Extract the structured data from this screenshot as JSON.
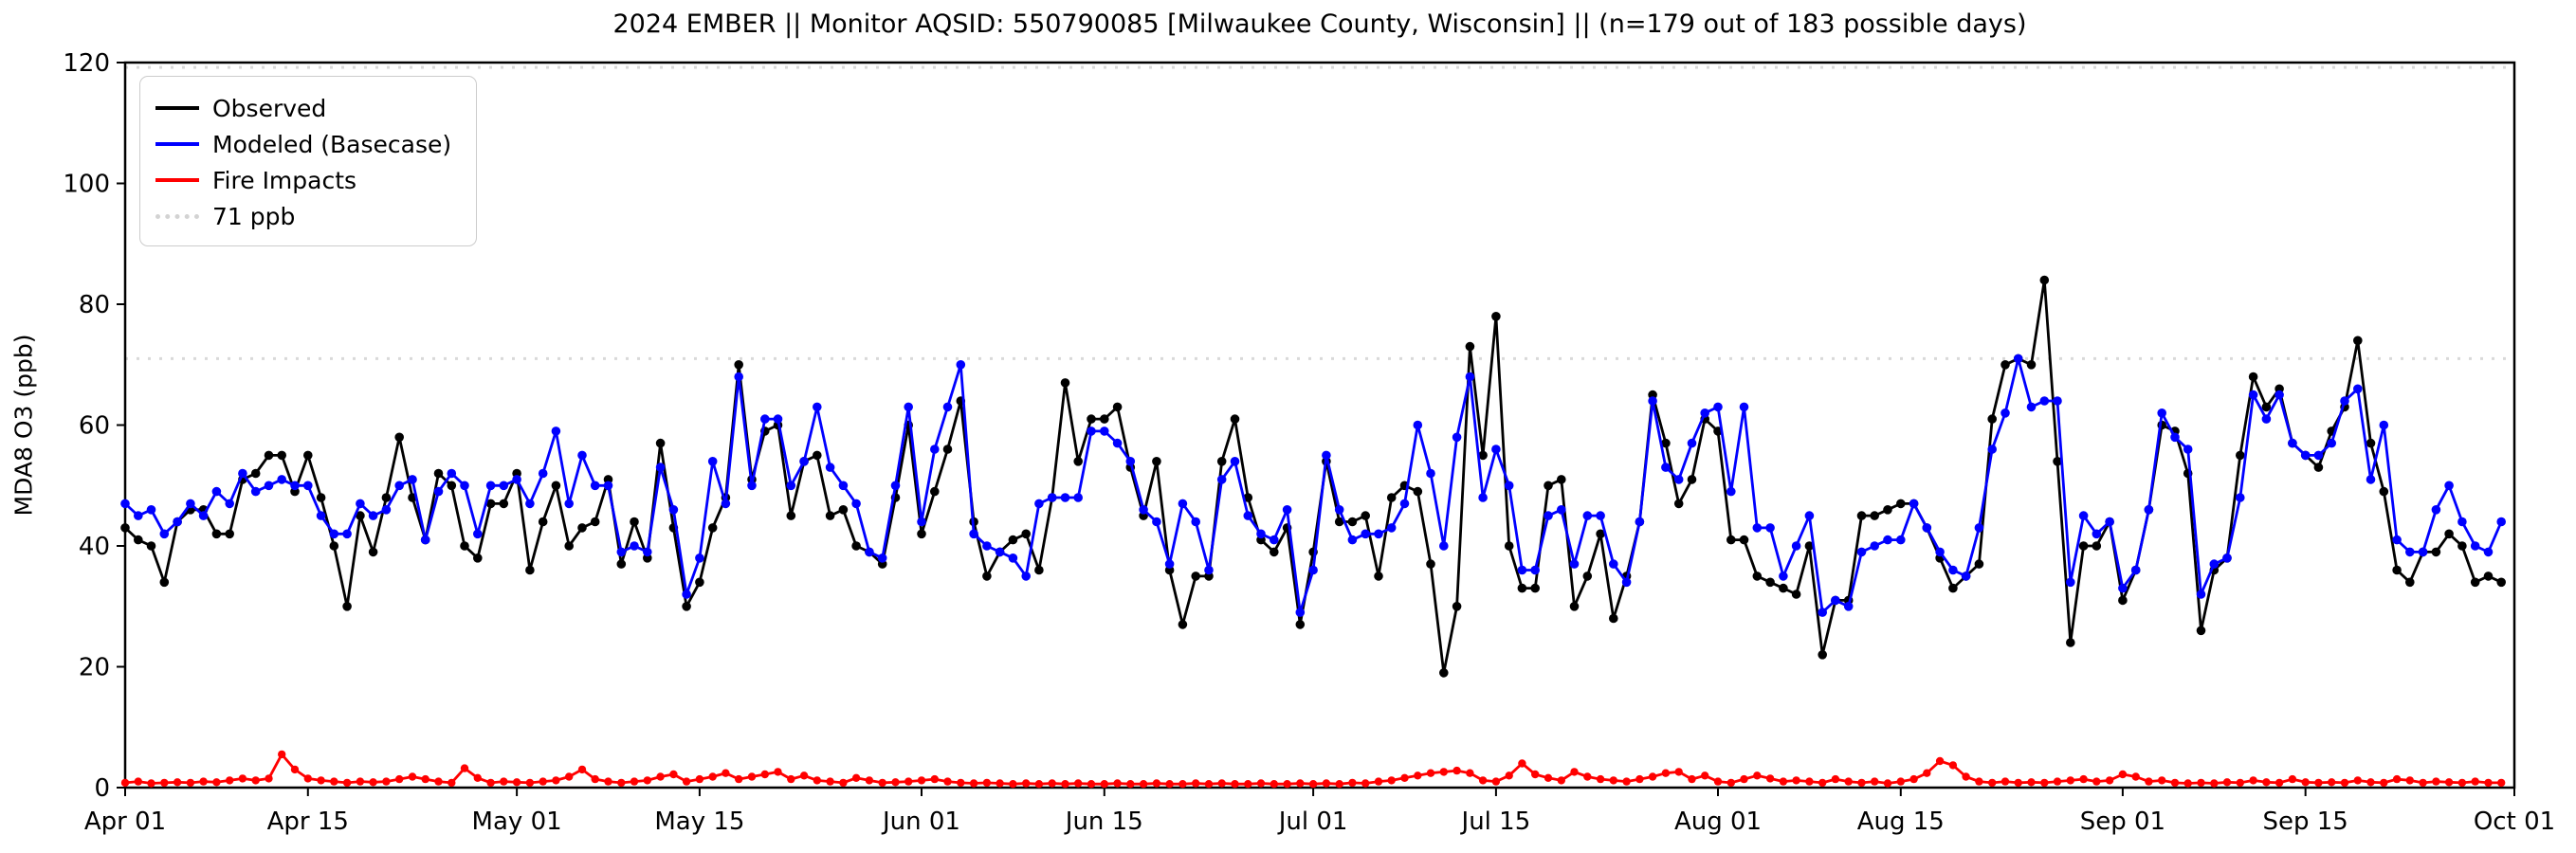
{
  "title": "2024 EMBER || Monitor AQSID: 550790085 [Milwaukee County, Wisconsin] || (n=179 out of 183 possible days)",
  "chart_data": {
    "type": "line",
    "title": "2024 EMBER || Monitor AQSID: 550790085 [Milwaukee County, Wisconsin] || (n=179 out of 183 possible days)",
    "xlabel": "",
    "ylabel": "MDA8 O3 (ppb)",
    "ylim": [
      0,
      120
    ],
    "yticks": [
      0,
      20,
      40,
      60,
      80,
      100,
      120
    ],
    "grid": false,
    "legend_position": "upper left",
    "x_axis": {
      "unit": "day index from Apr 01 2024",
      "total_days": 183,
      "ticks": [
        {
          "label": "Apr 01",
          "day": 0
        },
        {
          "label": "Apr 15",
          "day": 14
        },
        {
          "label": "May 01",
          "day": 30
        },
        {
          "label": "May 15",
          "day": 44
        },
        {
          "label": "Jun 01",
          "day": 61
        },
        {
          "label": "Jun 15",
          "day": 75
        },
        {
          "label": "Jul 01",
          "day": 91
        },
        {
          "label": "Jul 15",
          "day": 105
        },
        {
          "label": "Aug 01",
          "day": 122
        },
        {
          "label": "Aug 15",
          "day": 136
        },
        {
          "label": "Sep 01",
          "day": 153
        },
        {
          "label": "Sep 15",
          "day": 167
        },
        {
          "label": "Oct 01",
          "day": 183
        }
      ]
    },
    "threshold": {
      "value": 71,
      "label": "71 ppb",
      "color": "#d9d9d9"
    },
    "top_dotted_value": 119.2,
    "series": [
      {
        "name": "Observed",
        "color": "#000000",
        "values": [
          43,
          41,
          40,
          34,
          44,
          46,
          46,
          42,
          42,
          51,
          52,
          55,
          55,
          49,
          55,
          48,
          40,
          30,
          45,
          39,
          48,
          58,
          48,
          41,
          52,
          50,
          40,
          38,
          47,
          47,
          52,
          36,
          44,
          50,
          40,
          43,
          44,
          51,
          37,
          44,
          38,
          57,
          43,
          30,
          34,
          43,
          48,
          70,
          51,
          59,
          60,
          45,
          54,
          55,
          45,
          46,
          40,
          39,
          37,
          48,
          60,
          42,
          49,
          56,
          64,
          44,
          35,
          39,
          41,
          42,
          36,
          48,
          67,
          54,
          61,
          61,
          63,
          53,
          45,
          54,
          36,
          27,
          35,
          35,
          54,
          61,
          48,
          41,
          39,
          43,
          27,
          39,
          54,
          44,
          44,
          45,
          35,
          48,
          50,
          49,
          37,
          19,
          30,
          73,
          55,
          78,
          40,
          33,
          33,
          50,
          51,
          30,
          35,
          42,
          28,
          35,
          44,
          65,
          57,
          47,
          51,
          61,
          59,
          41,
          41,
          35,
          34,
          33,
          32,
          40,
          22,
          31,
          31,
          45,
          45,
          46,
          47,
          47,
          43,
          38,
          33,
          35,
          37,
          61,
          70,
          71,
          70,
          84,
          54,
          24,
          40,
          40,
          44,
          31,
          36,
          46,
          60,
          59,
          52,
          26,
          36,
          38,
          55,
          68,
          63,
          66,
          57,
          55,
          53,
          59,
          63,
          74,
          57,
          49,
          36,
          34,
          39,
          39,
          42,
          40,
          34,
          35,
          34
        ]
      },
      {
        "name": "Modeled (Basecase)",
        "color": "#0000ff",
        "values": [
          47,
          45,
          46,
          42,
          44,
          47,
          45,
          49,
          47,
          52,
          49,
          50,
          51,
          50,
          50,
          45,
          42,
          42,
          47,
          45,
          46,
          50,
          51,
          41,
          49,
          52,
          50,
          42,
          50,
          50,
          51,
          47,
          52,
          59,
          47,
          55,
          50,
          50,
          39,
          40,
          39,
          53,
          46,
          32,
          38,
          54,
          47,
          68,
          50,
          61,
          61,
          50,
          54,
          63,
          53,
          50,
          47,
          39,
          38,
          50,
          63,
          44,
          56,
          63,
          70,
          42,
          40,
          39,
          38,
          35,
          47,
          48,
          48,
          48,
          59,
          59,
          57,
          54,
          46,
          44,
          37,
          47,
          44,
          36,
          51,
          54,
          45,
          42,
          41,
          46,
          29,
          36,
          55,
          46,
          41,
          42,
          42,
          43,
          47,
          60,
          52,
          40,
          58,
          68,
          48,
          56,
          50,
          36,
          36,
          45,
          46,
          37,
          45,
          45,
          37,
          34,
          44,
          64,
          53,
          51,
          57,
          62,
          63,
          49,
          63,
          43,
          43,
          35,
          40,
          45,
          29,
          31,
          30,
          39,
          40,
          41,
          41,
          47,
          43,
          39,
          36,
          35,
          43,
          56,
          62,
          71,
          63,
          64,
          64,
          34,
          45,
          42,
          44,
          33,
          36,
          46,
          62,
          58,
          56,
          32,
          37,
          38,
          48,
          65,
          61,
          65,
          57,
          55,
          55,
          57,
          64,
          66,
          51,
          60,
          41,
          39,
          39,
          46,
          50,
          44,
          40,
          39,
          44
        ]
      },
      {
        "name": "Fire Impacts",
        "color": "#ff0000",
        "values": [
          0.8,
          1.0,
          0.7,
          0.8,
          0.9,
          0.8,
          1.0,
          0.9,
          1.2,
          1.5,
          1.2,
          1.5,
          5.5,
          3.0,
          1.5,
          1.2,
          1.0,
          0.8,
          1.0,
          0.9,
          1.0,
          1.4,
          1.8,
          1.4,
          1.0,
          0.8,
          3.2,
          1.6,
          0.8,
          1.0,
          0.9,
          0.8,
          1.0,
          1.2,
          1.8,
          3.0,
          1.4,
          1.0,
          0.8,
          1.0,
          1.2,
          1.8,
          2.2,
          1.0,
          1.4,
          1.8,
          2.4,
          1.4,
          1.8,
          2.2,
          2.6,
          1.4,
          2.0,
          1.2,
          1.0,
          0.8,
          1.6,
          1.2,
          0.8,
          0.9,
          1.0,
          1.2,
          1.4,
          1.0,
          0.8,
          0.7,
          0.8,
          0.7,
          0.6,
          0.7,
          0.6,
          0.7,
          0.6,
          0.7,
          0.6,
          0.6,
          0.7,
          0.6,
          0.6,
          0.7,
          0.6,
          0.6,
          0.7,
          0.6,
          0.7,
          0.6,
          0.6,
          0.7,
          0.6,
          0.6,
          0.7,
          0.6,
          0.7,
          0.6,
          0.8,
          0.7,
          1.0,
          1.2,
          1.6,
          2.0,
          2.4,
          2.6,
          2.8,
          2.4,
          1.2,
          1.0,
          2.0,
          4.0,
          2.2,
          1.6,
          1.2,
          2.6,
          1.8,
          1.4,
          1.2,
          1.0,
          1.4,
          1.8,
          2.4,
          2.6,
          1.4,
          2.0,
          1.0,
          0.8,
          1.4,
          2.0,
          1.5,
          1.0,
          1.2,
          1.0,
          0.8,
          1.4,
          1.0,
          0.8,
          1.0,
          0.7,
          1.0,
          1.4,
          2.4,
          4.4,
          3.7,
          1.8,
          1.0,
          0.8,
          1.0,
          0.8,
          0.9,
          0.8,
          1.0,
          1.2,
          1.4,
          1.0,
          1.2,
          2.2,
          1.8,
          1.0,
          1.2,
          0.8,
          0.7,
          0.8,
          0.7,
          0.9,
          0.8,
          1.2,
          0.9,
          0.8,
          1.4,
          0.9,
          0.8,
          0.9,
          0.8,
          1.2,
          0.9,
          0.8,
          1.4,
          1.2,
          0.8,
          1.0,
          0.9,
          0.8,
          1.0,
          0.8,
          0.8
        ]
      }
    ]
  },
  "legend": {
    "items": [
      {
        "label": "Observed",
        "style": "solid",
        "color": "#000000"
      },
      {
        "label": "Modeled (Basecase)",
        "style": "solid",
        "color": "#0000ff"
      },
      {
        "label": "Fire Impacts",
        "style": "solid",
        "color": "#ff0000"
      },
      {
        "label": "71 ppb",
        "style": "dotted",
        "color": "#d3d3d3"
      }
    ]
  }
}
